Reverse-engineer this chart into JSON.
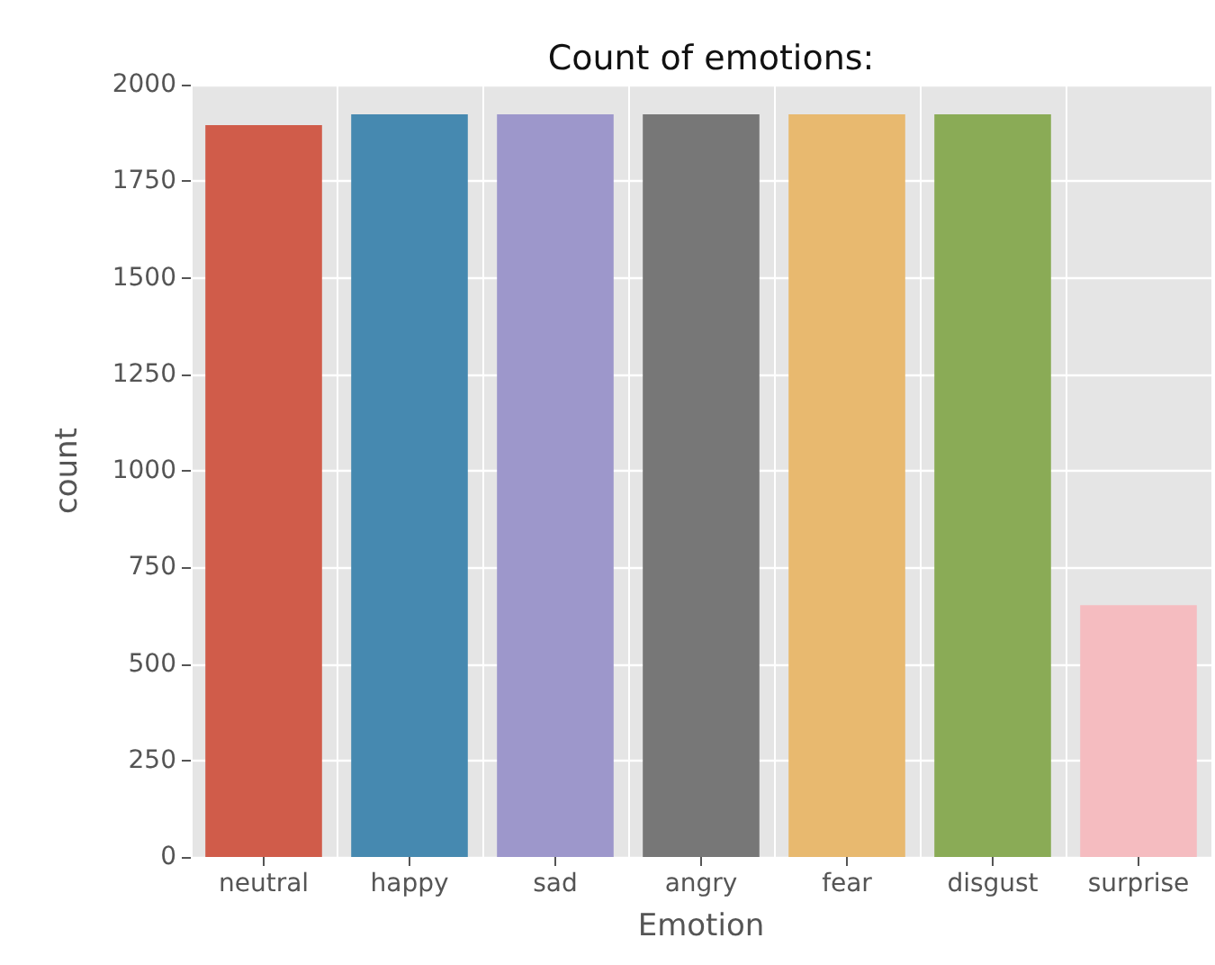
{
  "chart_data": {
    "type": "bar",
    "title": "Count of emotions:",
    "xlabel": "Emotion",
    "ylabel": "count",
    "categories": [
      "neutral",
      "happy",
      "sad",
      "angry",
      "fear",
      "disgust",
      "surprise"
    ],
    "values": [
      1895,
      1923,
      1923,
      1923,
      1923,
      1923,
      652
    ],
    "colors": [
      "#d05c4a",
      "#4689b0",
      "#9d97cb",
      "#777777",
      "#e8b96f",
      "#8aab56",
      "#f5bcc0"
    ],
    "ylim": [
      0,
      2000
    ],
    "yticks": [
      0,
      250,
      500,
      750,
      1000,
      1250,
      1500,
      1750,
      2000
    ],
    "grid": true
  }
}
